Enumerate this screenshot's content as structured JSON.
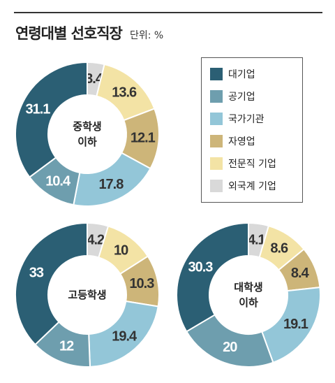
{
  "header": {
    "title": "연령대별 선호직장",
    "unit": "단위: %"
  },
  "legend": [
    {
      "label": "대기업",
      "color": "#2b5f74"
    },
    {
      "label": "공기업",
      "color": "#6e9eae"
    },
    {
      "label": "국가기관",
      "color": "#93c6d8"
    },
    {
      "label": "자영업",
      "color": "#cdb579"
    },
    {
      "label": "전문직 기업",
      "color": "#f3e3a5"
    },
    {
      "label": "외국계 기업",
      "color": "#d9d9d9"
    }
  ],
  "chart_data": [
    {
      "type": "pie",
      "center_label": [
        "중학생",
        "이하"
      ],
      "categories": [
        "대기업",
        "공기업",
        "국가기관",
        "자영업",
        "전문직 기업",
        "외국계 기업"
      ],
      "values": [
        31.1,
        10.4,
        17.8,
        12.1,
        13.6,
        3.4
      ],
      "labels": [
        "31.1",
        "10.4",
        "17.8",
        "12.1",
        "13.6",
        "3.4"
      ]
    },
    {
      "type": "pie",
      "center_label": [
        "고등학생"
      ],
      "categories": [
        "대기업",
        "공기업",
        "국가기관",
        "자영업",
        "전문직 기업",
        "외국계 기업"
      ],
      "values": [
        33,
        12,
        19.4,
        10.3,
        10,
        4.2
      ],
      "labels": [
        "33",
        "12",
        "19.4",
        "10.3",
        "10",
        "4.2"
      ]
    },
    {
      "type": "pie",
      "center_label": [
        "대학생",
        "이하"
      ],
      "categories": [
        "대기업",
        "공기업",
        "국가기관",
        "자영업",
        "전문직 기업",
        "외국계 기업"
      ],
      "values": [
        30.3,
        20,
        19.1,
        8.4,
        8.6,
        4.1
      ],
      "labels": [
        "30.3",
        "20",
        "19.1",
        "8.4",
        "8.6",
        "4.1"
      ]
    }
  ]
}
